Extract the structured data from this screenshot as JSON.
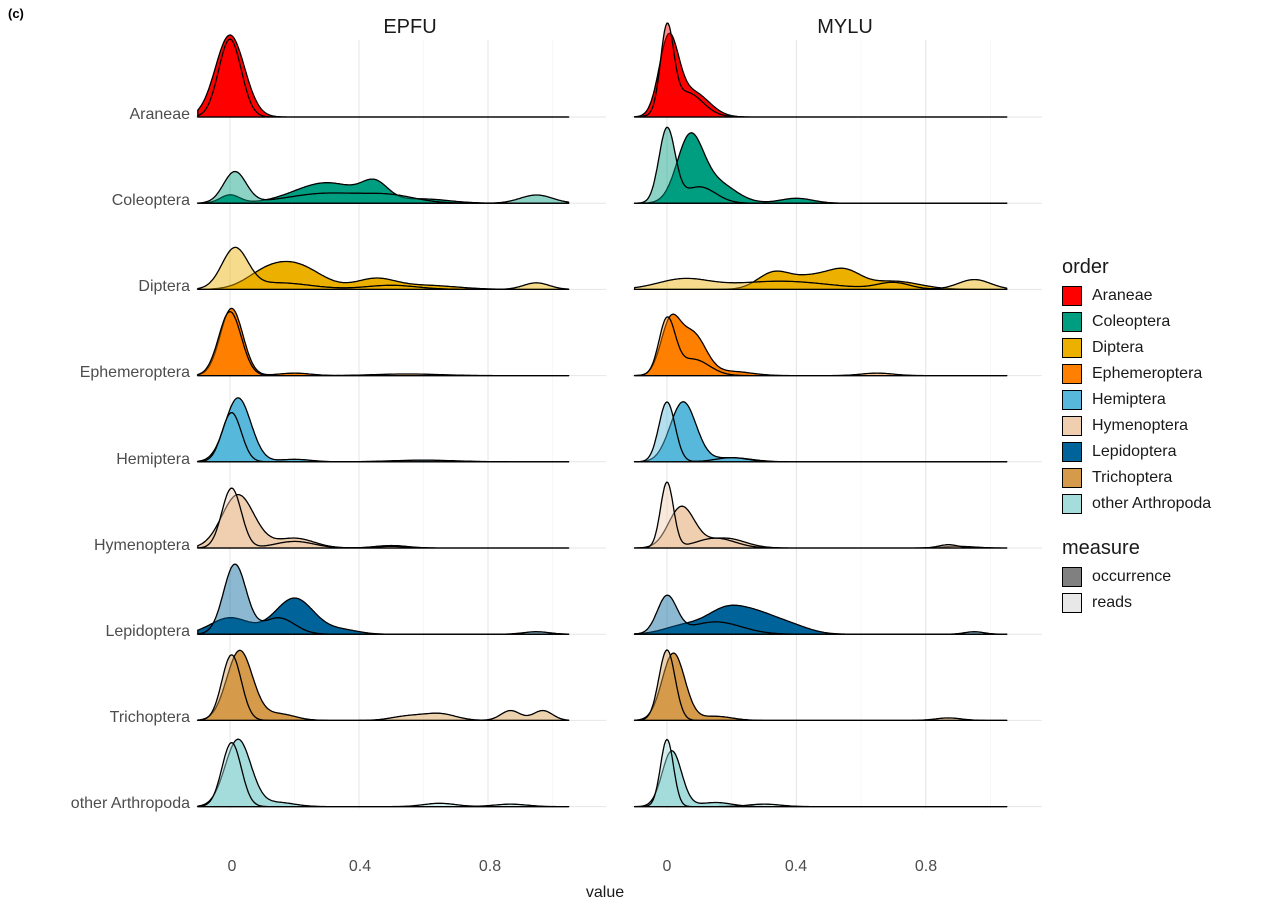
{
  "panel_label": "(c)",
  "legend": {
    "order_title": "order",
    "measure_title": "measure",
    "order_items": [
      {
        "label": "Araneae",
        "color": "#ff0000"
      },
      {
        "label": "Coleoptera",
        "color": "#009e80"
      },
      {
        "label": "Diptera",
        "color": "#ebb000"
      },
      {
        "label": "Ephemeroptera",
        "color": "#ff8000"
      },
      {
        "label": "Hemiptera",
        "color": "#57b8db"
      },
      {
        "label": "Hymenoptera",
        "color": "#f0cfb1"
      },
      {
        "label": "Lepidoptera",
        "color": "#00649a"
      },
      {
        "label": "Trichoptera",
        "color": "#d59b4b"
      },
      {
        "label": "other Arthropoda",
        "color": "#a5dcdc"
      }
    ],
    "measure_items": [
      {
        "label": "occurrence",
        "color": "#808080"
      },
      {
        "label": "reads",
        "color": "#e8e8e8"
      }
    ]
  },
  "chart_data": {
    "type": "area",
    "subtype": "ridgeline-density",
    "xlabel": "value",
    "ylabel": "",
    "xlim": [
      -0.1,
      1.05
    ],
    "xticks": [
      0,
      0.4,
      0.8
    ],
    "xtick_labels": [
      "0",
      "0.4",
      "0.8"
    ],
    "facets": [
      "EPFU",
      "MYLU"
    ],
    "rows": [
      "Araneae",
      "Coleoptera",
      "Diptera",
      "Ephemeroptera",
      "Hemiptera",
      "Hymenoptera",
      "Lepidoptera",
      "Trichoptera",
      "other Arthropoda"
    ],
    "measures": [
      "occurrence",
      "reads"
    ],
    "grid": true,
    "legend_position": "right",
    "density_peaks": {
      "EPFU": {
        "Araneae": {
          "occurrence": [
            [
              0.0,
              0.045,
              1.0
            ]
          ],
          "reads": [
            [
              0.0,
              0.035,
              0.95
            ]
          ]
        },
        "Coleoptera": {
          "occurrence": [
            [
              0.0,
              0.03,
              0.1
            ],
            [
              0.3,
              0.1,
              0.25
            ],
            [
              0.45,
              0.04,
              0.2
            ],
            [
              0.6,
              0.08,
              0.05
            ]
          ],
          "reads": [
            [
              0.015,
              0.035,
              0.38
            ],
            [
              0.3,
              0.12,
              0.12
            ],
            [
              0.5,
              0.08,
              0.08
            ],
            [
              0.95,
              0.05,
              0.1
            ]
          ]
        },
        "Diptera": {
          "occurrence": [
            [
              0.1,
              0.06,
              0.12
            ],
            [
              0.2,
              0.08,
              0.3
            ],
            [
              0.45,
              0.06,
              0.12
            ],
            [
              0.6,
              0.1,
              0.05
            ]
          ],
          "reads": [
            [
              0.015,
              0.04,
              0.48
            ],
            [
              0.15,
              0.1,
              0.08
            ],
            [
              0.5,
              0.08,
              0.05
            ],
            [
              0.95,
              0.04,
              0.08
            ]
          ]
        },
        "Ephemeroptera": {
          "occurrence": [
            [
              0.005,
              0.035,
              0.82
            ],
            [
              0.2,
              0.05,
              0.03
            ]
          ],
          "reads": [
            [
              0.0,
              0.035,
              0.78
            ],
            [
              0.55,
              0.1,
              0.02
            ]
          ]
        },
        "Hemiptera": {
          "occurrence": [
            [
              0.025,
              0.04,
              0.78
            ],
            [
              0.2,
              0.05,
              0.03
            ]
          ],
          "reads": [
            [
              0.005,
              0.03,
              0.6
            ],
            [
              0.6,
              0.1,
              0.02
            ]
          ]
        },
        "Hymenoptera": {
          "occurrence": [
            [
              0.025,
              0.05,
              0.65
            ],
            [
              0.2,
              0.06,
              0.12
            ],
            [
              0.5,
              0.05,
              0.03
            ]
          ],
          "reads": [
            [
              0.005,
              0.03,
              0.73
            ],
            [
              0.2,
              0.06,
              0.08
            ],
            [
              0.5,
              0.05,
              0.02
            ]
          ]
        },
        "Lepidoptera": {
          "occurrence": [
            [
              0.0,
              0.06,
              0.2
            ],
            [
              0.2,
              0.06,
              0.44
            ],
            [
              0.35,
              0.05,
              0.05
            ]
          ],
          "reads": [
            [
              0.015,
              0.035,
              0.85
            ],
            [
              0.15,
              0.05,
              0.2
            ],
            [
              0.95,
              0.04,
              0.03
            ]
          ]
        },
        "Trichoptera": {
          "occurrence": [
            [
              0.03,
              0.04,
              0.85
            ],
            [
              0.15,
              0.05,
              0.08
            ]
          ],
          "reads": [
            [
              0.005,
              0.03,
              0.8
            ],
            [
              0.55,
              0.05,
              0.05
            ],
            [
              0.65,
              0.05,
              0.08
            ],
            [
              0.87,
              0.03,
              0.12
            ],
            [
              0.97,
              0.03,
              0.12
            ]
          ]
        },
        "other Arthropoda": {
          "occurrence": [
            [
              0.025,
              0.04,
              0.82
            ],
            [
              0.15,
              0.05,
              0.05
            ]
          ],
          "reads": [
            [
              0.005,
              0.03,
              0.78
            ],
            [
              0.65,
              0.05,
              0.04
            ],
            [
              0.87,
              0.05,
              0.03
            ]
          ]
        }
      },
      "MYLU": {
        "Araneae": {
          "occurrence": [
            [
              0.005,
              0.03,
              0.92
            ],
            [
              0.08,
              0.05,
              0.3
            ]
          ],
          "reads": [
            [
              0.0,
              0.02,
              1.0
            ],
            [
              0.06,
              0.05,
              0.3
            ]
          ]
        },
        "Coleoptera": {
          "occurrence": [
            [
              0.07,
              0.04,
              0.75
            ],
            [
              0.15,
              0.06,
              0.25
            ],
            [
              0.4,
              0.05,
              0.06
            ]
          ],
          "reads": [
            [
              0.0,
              0.025,
              0.9
            ],
            [
              0.1,
              0.05,
              0.2
            ]
          ]
        },
        "Diptera": {
          "occurrence": [
            [
              0.33,
              0.05,
              0.2
            ],
            [
              0.45,
              0.06,
              0.15
            ],
            [
              0.55,
              0.05,
              0.2
            ],
            [
              0.7,
              0.08,
              0.1
            ]
          ],
          "reads": [
            [
              0.05,
              0.08,
              0.12
            ],
            [
              0.35,
              0.15,
              0.1
            ],
            [
              0.7,
              0.05,
              0.08
            ],
            [
              0.95,
              0.05,
              0.12
            ]
          ]
        },
        "Ephemeroptera": {
          "occurrence": [
            [
              0.01,
              0.03,
              0.62
            ],
            [
              0.08,
              0.04,
              0.5
            ],
            [
              0.2,
              0.06,
              0.05
            ]
          ],
          "reads": [
            [
              0.0,
              0.025,
              0.66
            ],
            [
              0.08,
              0.05,
              0.2
            ],
            [
              0.65,
              0.05,
              0.03
            ]
          ]
        },
        "Hemiptera": {
          "occurrence": [
            [
              0.05,
              0.04,
              0.73
            ],
            [
              0.2,
              0.06,
              0.05
            ]
          ],
          "reads": [
            [
              0.0,
              0.025,
              0.73
            ],
            [
              0.2,
              0.05,
              0.05
            ]
          ]
        },
        "Hymenoptera": {
          "occurrence": [
            [
              0.045,
              0.04,
              0.5
            ],
            [
              0.18,
              0.06,
              0.12
            ],
            [
              0.9,
              0.05,
              0.02
            ]
          ],
          "reads": [
            [
              0.0,
              0.02,
              0.8
            ],
            [
              0.15,
              0.06,
              0.12
            ],
            [
              0.87,
              0.03,
              0.04
            ]
          ]
        },
        "Lepidoptera": {
          "occurrence": [
            [
              0.05,
              0.06,
              0.1
            ],
            [
              0.18,
              0.06,
              0.28
            ],
            [
              0.28,
              0.06,
              0.2
            ],
            [
              0.38,
              0.06,
              0.1
            ]
          ],
          "reads": [
            [
              0.0,
              0.03,
              0.45
            ],
            [
              0.15,
              0.08,
              0.15
            ],
            [
              0.95,
              0.03,
              0.03
            ]
          ]
        },
        "Trichoptera": {
          "occurrence": [
            [
              0.02,
              0.035,
              0.82
            ],
            [
              0.15,
              0.05,
              0.05
            ]
          ],
          "reads": [
            [
              0.0,
              0.025,
              0.86
            ],
            [
              0.87,
              0.04,
              0.03
            ]
          ]
        },
        "other Arthropoda": {
          "occurrence": [
            [
              0.015,
              0.03,
              0.68
            ],
            [
              0.15,
              0.05,
              0.05
            ]
          ],
          "reads": [
            [
              0.0,
              0.02,
              0.82
            ],
            [
              0.3,
              0.05,
              0.03
            ]
          ]
        }
      }
    }
  }
}
